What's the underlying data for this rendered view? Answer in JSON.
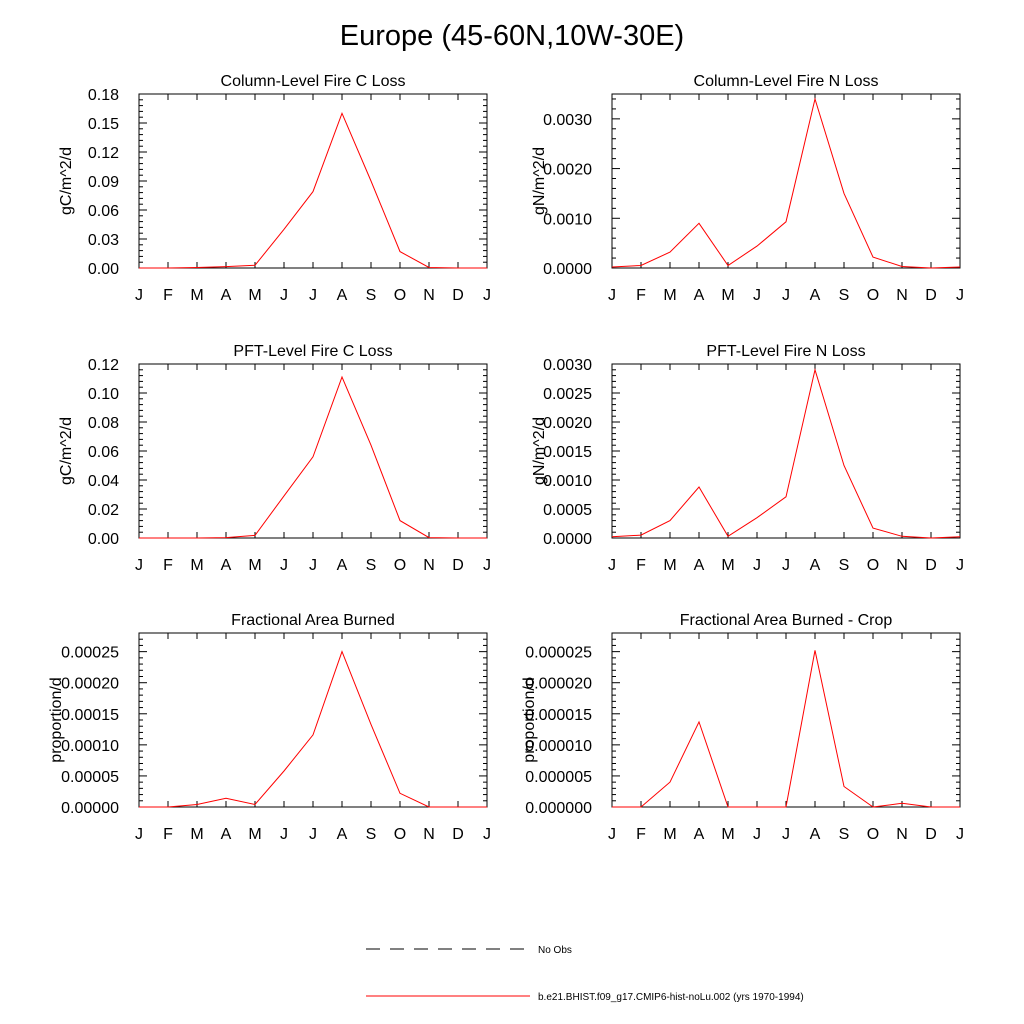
{
  "page": {
    "title": "Europe (45-60N,10W-30E)"
  },
  "months": [
    "J",
    "F",
    "M",
    "A",
    "M",
    "J",
    "J",
    "A",
    "S",
    "O",
    "N",
    "D",
    "J"
  ],
  "colors": {
    "model_line": "#ff0000",
    "obs_line": "#000000",
    "axis": "#000000"
  },
  "legend": {
    "obs_label": "No Obs",
    "model_label": "b.e21.BHIST.f09_g17.CMIP6-hist-noLu.002 (yrs 1970-1994)"
  },
  "chart_data": [
    {
      "type": "line",
      "title": "Column-Level Fire C Loss",
      "ylabel": "gC/m^2/d",
      "ylim": [
        0,
        0.18
      ],
      "yticks": [
        "0.00",
        "0.03",
        "0.06",
        "0.09",
        "0.12",
        "0.15",
        "0.18"
      ],
      "ytick_values": [
        0,
        0.03,
        0.06,
        0.09,
        0.12,
        0.15,
        0.18
      ],
      "x": [
        "J",
        "F",
        "M",
        "A",
        "M",
        "J",
        "J",
        "A",
        "S",
        "O",
        "N",
        "D",
        "J"
      ],
      "series": [
        {
          "name": "b.e21.BHIST.f09_g17.CMIP6-hist-noLu.002 (yrs 1970-1994)",
          "values": [
            0,
            0,
            0.0005,
            0.0015,
            0.0028,
            0.04,
            0.079,
            0.16,
            0.09,
            0.017,
            0.0005,
            0,
            0
          ]
        }
      ]
    },
    {
      "type": "line",
      "title": "Column-Level Fire N Loss",
      "ylabel": "gN/m^2/d",
      "ylim": [
        0,
        0.0035
      ],
      "yticks": [
        "0.0000",
        "0.0010",
        "0.0020",
        "0.0030"
      ],
      "ytick_values": [
        0,
        0.001,
        0.002,
        0.003
      ],
      "x": [
        "J",
        "F",
        "M",
        "A",
        "M",
        "J",
        "J",
        "A",
        "S",
        "O",
        "N",
        "D",
        "J"
      ],
      "series": [
        {
          "name": "b.e21.BHIST.f09_g17.CMIP6-hist-noLu.002 (yrs 1970-1994)",
          "values": [
            2e-05,
            5e-05,
            0.00032,
            0.0009,
            5e-05,
            0.00044,
            0.00093,
            0.0034,
            0.0015,
            0.00022,
            3e-05,
            0,
            2e-05
          ]
        }
      ]
    },
    {
      "type": "line",
      "title": "PFT-Level Fire C Loss",
      "ylabel": "gC/m^2/d",
      "ylim": [
        0,
        0.12
      ],
      "yticks": [
        "0.00",
        "0.02",
        "0.04",
        "0.06",
        "0.08",
        "0.10",
        "0.12"
      ],
      "ytick_values": [
        0,
        0.02,
        0.04,
        0.06,
        0.08,
        0.1,
        0.12
      ],
      "x": [
        "J",
        "F",
        "M",
        "A",
        "M",
        "J",
        "J",
        "A",
        "S",
        "O",
        "N",
        "D",
        "J"
      ],
      "series": [
        {
          "name": "b.e21.BHIST.f09_g17.CMIP6-hist-noLu.002 (yrs 1970-1994)",
          "values": [
            0,
            0,
            0,
            0.0003,
            0.0018,
            0.029,
            0.056,
            0.111,
            0.064,
            0.012,
            0.0003,
            0,
            0
          ]
        }
      ]
    },
    {
      "type": "line",
      "title": "PFT-Level Fire N Loss",
      "ylabel": "gN/m^2/d",
      "ylim": [
        0,
        0.003
      ],
      "yticks": [
        "0.0000",
        "0.0005",
        "0.0010",
        "0.0015",
        "0.0020",
        "0.0025",
        "0.0030"
      ],
      "ytick_values": [
        0,
        0.0005,
        0.001,
        0.0015,
        0.002,
        0.0025,
        0.003
      ],
      "x": [
        "J",
        "F",
        "M",
        "A",
        "M",
        "J",
        "J",
        "A",
        "S",
        "O",
        "N",
        "D",
        "J"
      ],
      "series": [
        {
          "name": "b.e21.BHIST.f09_g17.CMIP6-hist-noLu.002 (yrs 1970-1994)",
          "values": [
            2e-05,
            5e-05,
            0.0003,
            0.00088,
            3e-05,
            0.00035,
            0.00071,
            0.0029,
            0.00125,
            0.00017,
            3e-05,
            0,
            2e-05
          ]
        }
      ]
    },
    {
      "type": "line",
      "title": "Fractional Area Burned",
      "ylabel": "proportion/d",
      "ylim": [
        0,
        0.00028
      ],
      "yticks": [
        "0.00000",
        "0.00005",
        "0.00010",
        "0.00015",
        "0.00020",
        "0.00025"
      ],
      "ytick_values": [
        0,
        5e-05,
        0.0001,
        0.00015,
        0.0002,
        0.00025
      ],
      "x": [
        "J",
        "F",
        "M",
        "A",
        "M",
        "J",
        "J",
        "A",
        "S",
        "O",
        "N",
        "D",
        "J"
      ],
      "series": [
        {
          "name": "b.e21.BHIST.f09_g17.CMIP6-hist-noLu.002 (yrs 1970-1994)",
          "values": [
            0,
            0,
            4e-06,
            1.4e-05,
            4e-06,
            5.8e-05,
            0.000116,
            0.00025,
            0.000133,
            2.2e-05,
            0,
            0,
            0
          ]
        }
      ]
    },
    {
      "type": "line",
      "title": "Fractional Area Burned - Crop",
      "ylabel": "proportion/d",
      "ylim": [
        0,
        2.8e-05
      ],
      "yticks": [
        "0.000000",
        "0.000005",
        "0.000010",
        "0.000015",
        "0.000020",
        "0.000025"
      ],
      "ytick_values": [
        0,
        5e-06,
        1e-05,
        1.5e-05,
        2e-05,
        2.5e-05
      ],
      "x": [
        "J",
        "F",
        "M",
        "A",
        "M",
        "J",
        "J",
        "A",
        "S",
        "O",
        "N",
        "D",
        "J"
      ],
      "series": [
        {
          "name": "b.e21.BHIST.f09_g17.CMIP6-hist-noLu.002 (yrs 1970-1994)",
          "values": [
            0,
            0,
            4e-06,
            1.37e-05,
            0,
            0,
            0,
            2.52e-05,
            3.3e-06,
            0,
            6e-07,
            0,
            0
          ]
        }
      ]
    }
  ]
}
